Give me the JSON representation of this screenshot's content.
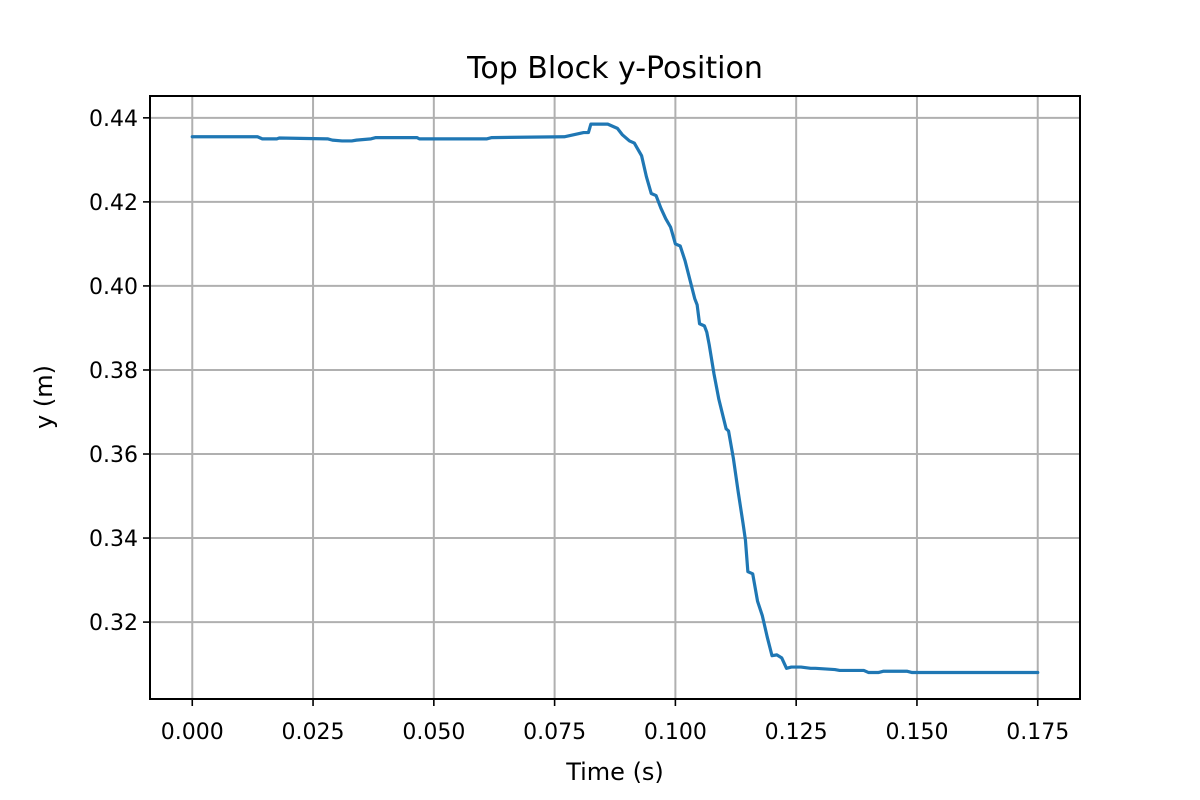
{
  "chart_data": {
    "type": "line",
    "title": "Top Block y-Position",
    "xlabel": "Time (s)",
    "ylabel": "y (m)",
    "xlim": [
      -0.00875,
      0.18375
    ],
    "ylim": [
      0.3017,
      0.4452
    ],
    "grid": true,
    "x_ticks": [
      0.0,
      0.025,
      0.05,
      0.075,
      0.1,
      0.125,
      0.15,
      0.175
    ],
    "x_tick_labels": [
      "0.000",
      "0.025",
      "0.050",
      "0.075",
      "0.100",
      "0.125",
      "0.150",
      "0.175"
    ],
    "y_ticks": [
      0.32,
      0.34,
      0.36,
      0.38,
      0.4,
      0.42,
      0.44
    ],
    "y_tick_labels": [
      "0.32",
      "0.34",
      "0.36",
      "0.38",
      "0.40",
      "0.42",
      "0.44"
    ],
    "series": [
      {
        "color": "#1f77b4",
        "x": [
          0.0,
          0.0135,
          0.0145,
          0.0175,
          0.018,
          0.028,
          0.029,
          0.031,
          0.033,
          0.034,
          0.037,
          0.038,
          0.0465,
          0.047,
          0.061,
          0.062,
          0.077,
          0.079,
          0.081,
          0.082,
          0.0825,
          0.086,
          0.087,
          0.088,
          0.089,
          0.0905,
          0.0915,
          0.092,
          0.093,
          0.094,
          0.095,
          0.096,
          0.097,
          0.098,
          0.099,
          0.1,
          0.101,
          0.102,
          0.104,
          0.1045,
          0.105,
          0.106,
          0.1065,
          0.107,
          0.108,
          0.109,
          0.1105,
          0.111,
          0.112,
          0.113,
          0.114,
          0.1145,
          0.115,
          0.116,
          0.117,
          0.118,
          0.119,
          0.12,
          0.121,
          0.122,
          0.123,
          0.124,
          0.125,
          0.126,
          0.128,
          0.129,
          0.133,
          0.134,
          0.139,
          0.14,
          0.142,
          0.143,
          0.148,
          0.149,
          0.175
        ],
        "y": [
          0.4355,
          0.4355,
          0.435,
          0.435,
          0.4352,
          0.435,
          0.4347,
          0.4345,
          0.4345,
          0.4347,
          0.435,
          0.4353,
          0.4353,
          0.435,
          0.435,
          0.4353,
          0.4355,
          0.436,
          0.4365,
          0.4365,
          0.4385,
          0.4385,
          0.438,
          0.4375,
          0.436,
          0.4345,
          0.434,
          0.433,
          0.431,
          0.426,
          0.422,
          0.4215,
          0.4185,
          0.416,
          0.414,
          0.41,
          0.4095,
          0.406,
          0.397,
          0.3955,
          0.391,
          0.3905,
          0.389,
          0.386,
          0.379,
          0.373,
          0.366,
          0.3655,
          0.359,
          0.351,
          0.3435,
          0.3395,
          0.332,
          0.3315,
          0.325,
          0.3215,
          0.3165,
          0.312,
          0.3122,
          0.3115,
          0.309,
          0.3093,
          0.3093,
          0.3093,
          0.309,
          0.309,
          0.3087,
          0.3085,
          0.3085,
          0.308,
          0.308,
          0.3083,
          0.3083,
          0.308,
          0.308
        ]
      }
    ]
  }
}
